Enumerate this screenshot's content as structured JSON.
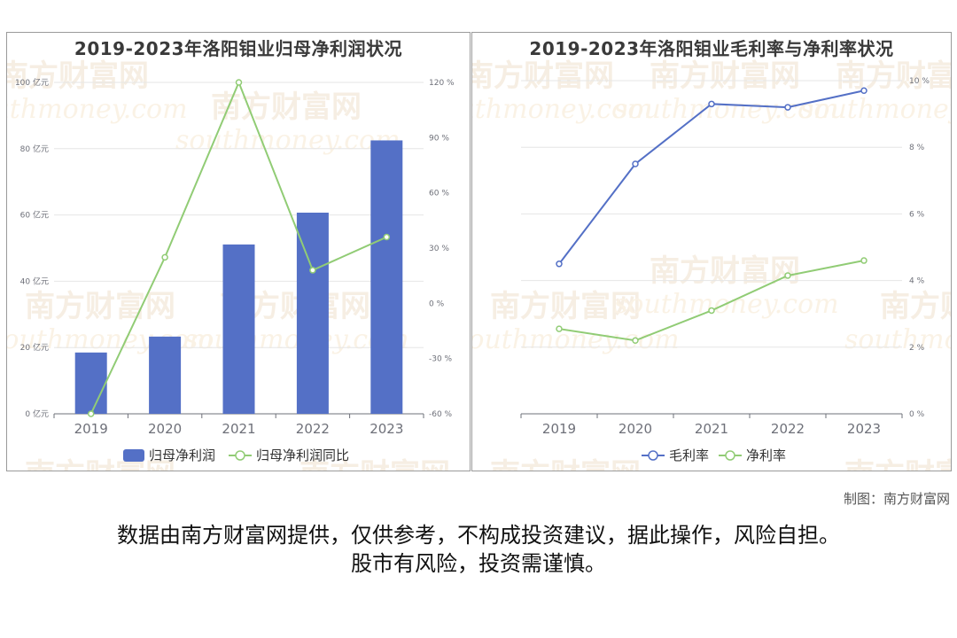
{
  "chart_data": [
    {
      "type": "bar",
      "title": "2019-2023年洛阳钼业归母净利润状况",
      "categories": [
        "2019",
        "2020",
        "2021",
        "2022",
        "2023"
      ],
      "series": [
        {
          "name": "归母净利润",
          "type": "bar",
          "axis": "left",
          "values": [
            18.5,
            23.3,
            51.1,
            60.7,
            82.5
          ]
        },
        {
          "name": "归母净利润同比",
          "type": "line",
          "axis": "right",
          "values": [
            -60,
            25,
            120,
            18,
            36
          ]
        }
      ],
      "y_left": {
        "ticks": [
          "0 亿元",
          "20 亿元",
          "40 亿元",
          "60 亿元",
          "80 亿元",
          "100 亿元"
        ],
        "min": 0,
        "max": 100
      },
      "y_right": {
        "ticks": [
          "-60 %",
          "-30 %",
          "0 %",
          "30 %",
          "60 %",
          "90 %",
          "120 %"
        ],
        "min": -60,
        "max": 120
      },
      "legend_position": "bottom-center",
      "grid": true,
      "colors": {
        "bar": "#5470c6",
        "line": "#91cc75"
      }
    },
    {
      "type": "line",
      "title": "2019-2023年洛阳钼业毛利率与净利率状况",
      "categories": [
        "2019",
        "2020",
        "2021",
        "2022",
        "2023"
      ],
      "series": [
        {
          "name": "毛利率",
          "values": [
            4.5,
            7.5,
            9.3,
            9.2,
            9.7
          ]
        },
        {
          "name": "净利率",
          "values": [
            2.55,
            2.2,
            3.1,
            4.15,
            4.6
          ]
        }
      ],
      "y_right": {
        "ticks": [
          "0 %",
          "2 %",
          "4 %",
          "6 %",
          "8 %",
          "10 %"
        ],
        "min": 0,
        "max": 10
      },
      "legend_position": "bottom-center",
      "grid": true,
      "colors": {
        "gross": "#5470c6",
        "net": "#91cc75"
      }
    }
  ],
  "watermark": {
    "cn": "南方财富网",
    "en": "southmoney.com"
  },
  "credit": "制图：南方财富网",
  "disclaimer": {
    "line1": "数据由南方财富网提供，仅供参考，不构成投资建议，据此操作，风险自担。",
    "line2": "股市有风险，投资需谨慎。"
  }
}
